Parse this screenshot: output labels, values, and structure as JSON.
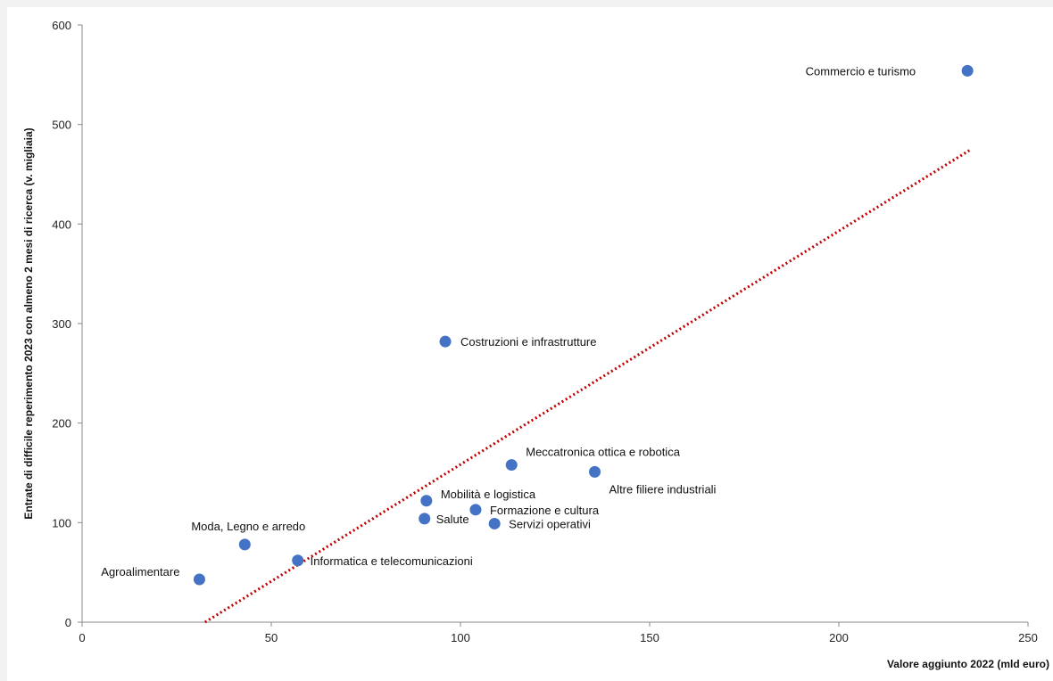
{
  "chart_data": {
    "type": "scatter",
    "title": "",
    "xlabel": "Valore aggiunto 2022 (mld euro)",
    "ylabel": "Entrate di difficile reperimento 2023 con almeno 2 mesi di ricerca  (v. migliaia)",
    "xlim": [
      0,
      250
    ],
    "ylim": [
      0,
      600
    ],
    "x_ticks": [
      "0",
      "50",
      "100",
      "150",
      "200",
      "250"
    ],
    "y_ticks": [
      "0",
      "100",
      "200",
      "300",
      "400",
      "500",
      "600"
    ],
    "grid": false,
    "legend": "none",
    "point_color": "#4472c4",
    "trendline_color": "#c00000",
    "points": [
      {
        "label": "Agroalimentare",
        "x": 31,
        "y": 43
      },
      {
        "label": "Moda, Legno e arredo",
        "x": 43,
        "y": 78
      },
      {
        "label": "Informatica e telecomunicazioni",
        "x": 57,
        "y": 62
      },
      {
        "label": "Salute",
        "x": 90.5,
        "y": 104
      },
      {
        "label": "Mobilità e logistica",
        "x": 91,
        "y": 122
      },
      {
        "label": "Costruzioni e infrastrutture",
        "x": 96,
        "y": 282
      },
      {
        "label": "Formazione e cultura",
        "x": 104,
        "y": 113
      },
      {
        "label": "Servizi operativi",
        "x": 109,
        "y": 99
      },
      {
        "label": "Meccatronica ottica e robotica",
        "x": 113.5,
        "y": 158
      },
      {
        "label": "Altre filiere industriali",
        "x": 135.5,
        "y": 151
      },
      {
        "label": "Commercio e turismo",
        "x": 234,
        "y": 554
      }
    ],
    "trendline": {
      "x": [
        32.5,
        234.5
      ],
      "y": [
        0,
        474
      ]
    }
  }
}
